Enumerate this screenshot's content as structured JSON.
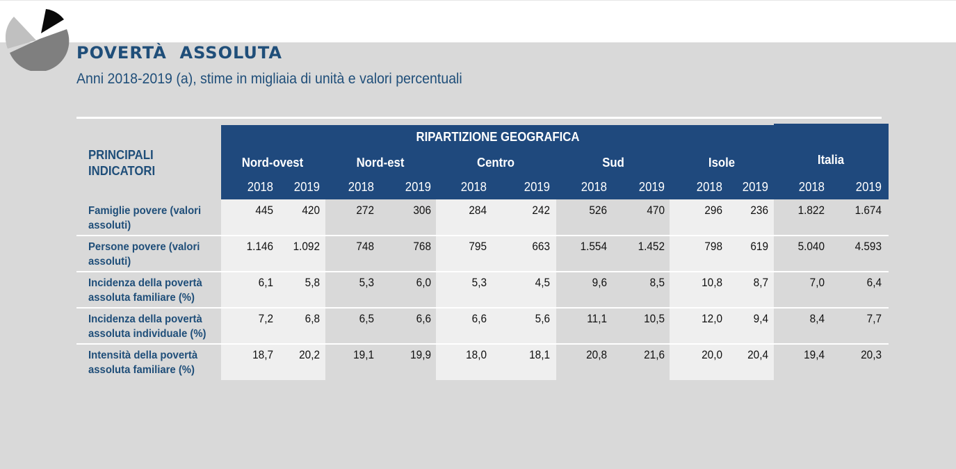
{
  "header": {
    "title": "POVERTÀ  ASSOLUTA",
    "subtitle": "Anni 2018-2019 (a), stime in migliaia di unità e valori percentuali"
  },
  "colors": {
    "header_blue": "#1f497d",
    "title_blue": "#1f4e79",
    "page_gray": "#d9d9d9",
    "band_light": "#efefef"
  },
  "table": {
    "corner_label": "PRINCIPALI INDICATORI",
    "group_header": "RIPARTIZIONE GEOGRAFICA",
    "regions": [
      "Nord-ovest",
      "Nord-est",
      "Centro",
      "Sud",
      "Isole",
      "Italia"
    ],
    "years": [
      "2018",
      "2019",
      "2018",
      "2019",
      "2018",
      "2019",
      "2018",
      "2019",
      "2018",
      "2019",
      "2018",
      "2019"
    ],
    "rows": [
      {
        "label": "Famiglie povere (valori assoluti)",
        "values": [
          "445",
          "420",
          "272",
          "306",
          "284",
          "242",
          "526",
          "470",
          "296",
          "236",
          "1.822",
          "1.674"
        ]
      },
      {
        "label": "Persone povere (valori assoluti)",
        "values": [
          "1.146",
          "1.092",
          "748",
          "768",
          "795",
          "663",
          "1.554",
          "1.452",
          "798",
          "619",
          "5.040",
          "4.593"
        ]
      },
      {
        "label": "Incidenza della povertà assoluta familiare (%)",
        "values": [
          "6,1",
          "5,8",
          "5,3",
          "6,0",
          "5,3",
          "4,5",
          "9,6",
          "8,5",
          "10,8",
          "8,7",
          "7,0",
          "6,4"
        ]
      },
      {
        "label": "Incidenza della povertà assoluta individuale (%)",
        "values": [
          "7,2",
          "6,8",
          "6,5",
          "6,6",
          "6,6",
          "5,6",
          "11,1",
          "10,5",
          "12,0",
          "9,4",
          "8,4",
          "7,7"
        ]
      },
      {
        "label": "Intensità della povertà assoluta familiare (%)",
        "values": [
          "18,7",
          "20,2",
          "19,1",
          "19,9",
          "18,0",
          "18,1",
          "20,8",
          "21,6",
          "20,0",
          "20,4",
          "19,4",
          "20,3"
        ]
      }
    ]
  }
}
